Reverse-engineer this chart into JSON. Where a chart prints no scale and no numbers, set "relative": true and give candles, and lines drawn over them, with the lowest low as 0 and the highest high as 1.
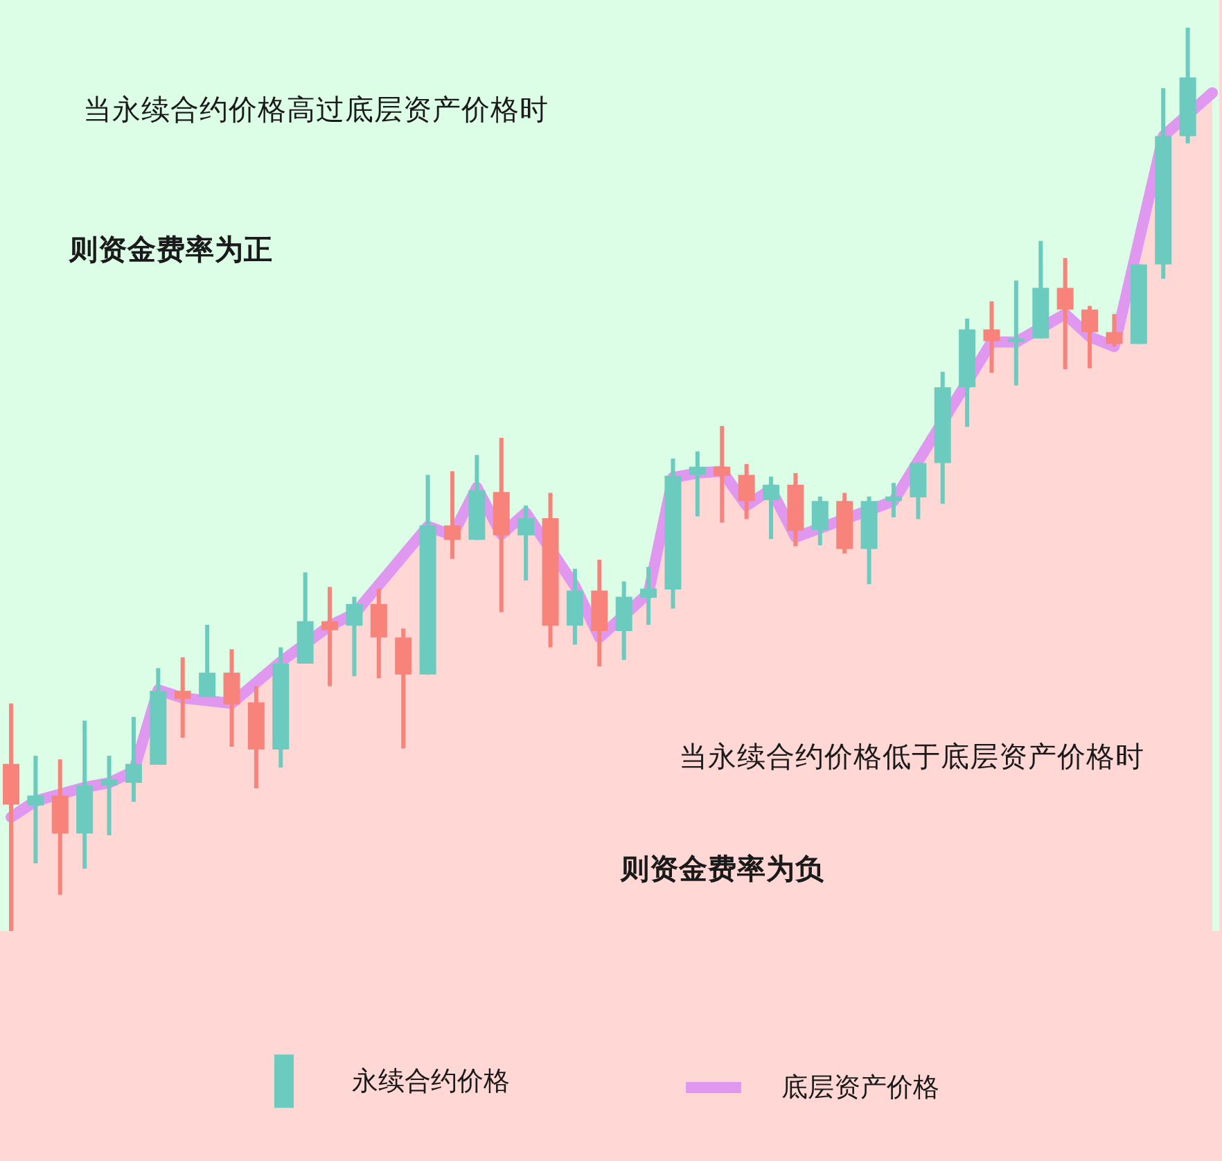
{
  "chart_data": {
    "type": "candlestick",
    "relative": true,
    "legend": "bottom",
    "categories": [
      null,
      null,
      null,
      null,
      null,
      null,
      null,
      null,
      null,
      null,
      null,
      null,
      null,
      null,
      null,
      null,
      null,
      null,
      null,
      null,
      null,
      null,
      null,
      null,
      null,
      null,
      null,
      null,
      null,
      null,
      null,
      null,
      null,
      null,
      null,
      null,
      null,
      null,
      null,
      null,
      null,
      null,
      null,
      null,
      null,
      null,
      null,
      null,
      null,
      null
    ],
    "annotations": [
      "当永续合约价格高过底层资产价格时",
      "则资金费率为正",
      "当永续合约价格低于底层资产价格时",
      "则资金费率为负"
    ],
    "series": [
      {
        "type": "area",
        "color": "#ffd7d4",
        "values": [
          0.126,
          0.144,
          null,
          0.159,
          0.164,
          0.177,
          0.267,
          0.258,
          null,
          0.252,
          null,
          0.298,
          null,
          0.338,
          0.351,
          null,
          null,
          0.448,
          0.438,
          0.491,
          0.439,
          0.463,
          null,
          0.382,
          0.325,
          null,
          0.374,
          0.502,
          0.507,
          0.509,
          0.471,
          0.489,
          0.436,
          null,
          null,
          null,
          0.476,
          null,
          null,
          null,
          0.652,
          0.652,
          null,
          0.683,
          0.658,
          0.647,
          null,
          0.88,
          null,
          0.928
        ]
      },
      {
        "type": "line",
        "name": "底层资产价格",
        "color": "#e097f0",
        "values": [
          0.126,
          0.144,
          null,
          0.159,
          0.164,
          0.177,
          0.267,
          0.258,
          null,
          0.252,
          null,
          0.298,
          null,
          0.338,
          0.351,
          null,
          null,
          0.448,
          0.438,
          0.491,
          0.439,
          0.463,
          null,
          0.382,
          0.325,
          null,
          0.374,
          0.502,
          0.507,
          0.509,
          0.471,
          0.489,
          0.436,
          null,
          null,
          null,
          0.476,
          null,
          null,
          null,
          0.652,
          0.652,
          null,
          0.683,
          0.658,
          0.647,
          null,
          0.88,
          null,
          0.928
        ]
      },
      {
        "name": "永续合约价格",
        "color": "#6ccbbf",
        "ohlc": [
          [
            0.185,
            0.252,
            0,
            0.14
          ],
          [
            0.139,
            0.194,
            0.075,
            0.15
          ],
          [
            0.15,
            0.19,
            0.04,
            0.108
          ],
          [
            0.108,
            0.233,
            0.069,
            0.161
          ],
          [
            0.161,
            0.194,
            0.106,
            0.168
          ],
          [
            0.164,
            0.237,
            0.143,
            0.185
          ],
          [
            0.184,
            0.291,
            0.184,
            0.266
          ],
          [
            0.266,
            0.303,
            0.214,
            0.257
          ],
          [
            0.259,
            0.339,
            0.259,
            0.286
          ],
          [
            0.286,
            0.312,
            0.204,
            0.251
          ],
          [
            0.253,
            0.271,
            0.158,
            0.201
          ],
          [
            0.201,
            0.314,
            0.181,
            0.296
          ],
          [
            0.296,
            0.397,
            0.296,
            0.343
          ],
          [
            0.343,
            0.381,
            0.271,
            0.333
          ],
          [
            0.338,
            0.37,
            0.282,
            0.362
          ],
          [
            0.362,
            0.379,
            0.28,
            0.325
          ],
          [
            0.325,
            0.335,
            0.202,
            0.284
          ],
          [
            0.284,
            0.505,
            0.284,
            0.449
          ],
          [
            0.449,
            0.509,
            0.412,
            0.433
          ],
          [
            0.433,
            0.527,
            0.433,
            0.488
          ],
          [
            0.486,
            0.546,
            0.353,
            0.438
          ],
          [
            0.438,
            0.471,
            0.388,
            0.457
          ],
          [
            0.457,
            0.485,
            0.314,
            0.338
          ],
          [
            0.338,
            0.401,
            0.317,
            0.377
          ],
          [
            0.377,
            0.411,
            0.293,
            0.332
          ],
          [
            0.332,
            0.387,
            0.3,
            0.37
          ],
          [
            0.369,
            0.403,
            0.339,
            0.379
          ],
          [
            0.378,
            0.523,
            0.357,
            0.504
          ],
          [
            0.505,
            0.531,
            0.459,
            0.514
          ],
          [
            0.514,
            0.559,
            0.452,
            0.504
          ],
          [
            0.505,
            0.517,
            0.456,
            0.476
          ],
          [
            0.477,
            0.503,
            0.434,
            0.494
          ],
          [
            0.494,
            0.507,
            0.426,
            0.443
          ],
          [
            0.444,
            0.481,
            0.427,
            0.476
          ],
          [
            0.476,
            0.485,
            0.418,
            0.423
          ],
          [
            0.423,
            0.481,
            0.384,
            0.476
          ],
          [
            0.476,
            0.496,
            0.458,
            0.481
          ],
          [
            0.48,
            0.519,
            0.456,
            0.518
          ],
          [
            0.518,
            0.619,
            0.473,
            0.602
          ],
          [
            0.602,
            0.678,
            0.558,
            0.666
          ],
          [
            0.666,
            0.697,
            0.618,
            0.653
          ],
          [
            0.652,
            0.72,
            0.604,
            0.656
          ],
          [
            0.656,
            0.764,
            0.656,
            0.712
          ],
          [
            0.712,
            0.745,
            0.622,
            0.688
          ],
          [
            0.688,
            0.692,
            0.623,
            0.663
          ],
          [
            0.663,
            0.683,
            0.647,
            0.65
          ],
          [
            0.65,
            0.738,
            0.65,
            0.738
          ],
          [
            0.738,
            0.933,
            0.722,
            0.88
          ],
          [
            0.88,
            1,
            0.872,
            0.945
          ],
          null
        ],
        "colors": [
          "#f7837a",
          "#6ccbbf",
          "#f7837a",
          "#6ccbbf",
          "#6ccbbf",
          "#6ccbbf",
          "#6ccbbf",
          "#f7837a",
          "#6ccbbf",
          "#f7837a",
          "#f7837a",
          "#6ccbbf",
          "#6ccbbf",
          "#f7837a",
          "#6ccbbf",
          "#f7837a",
          "#f7837a",
          "#6ccbbf",
          "#f7837a",
          "#6ccbbf",
          "#f7837a",
          "#6ccbbf",
          "#f7837a",
          "#6ccbbf",
          "#f7837a",
          "#6ccbbf",
          "#6ccbbf",
          "#6ccbbf",
          "#6ccbbf",
          "#f7837a",
          "#f7837a",
          "#6ccbbf",
          "#f7837a",
          "#6ccbbf",
          "#f7837a",
          "#6ccbbf",
          "#6ccbbf",
          "#6ccbbf",
          "#6ccbbf",
          "#6ccbbf",
          "#f7837a",
          "#6ccbbf",
          "#6ccbbf",
          "#f7837a",
          "#f7837a",
          "#f7837a",
          "#6ccbbf",
          "#6ccbbf",
          "#6ccbbf",
          null
        ]
      }
    ]
  }
}
